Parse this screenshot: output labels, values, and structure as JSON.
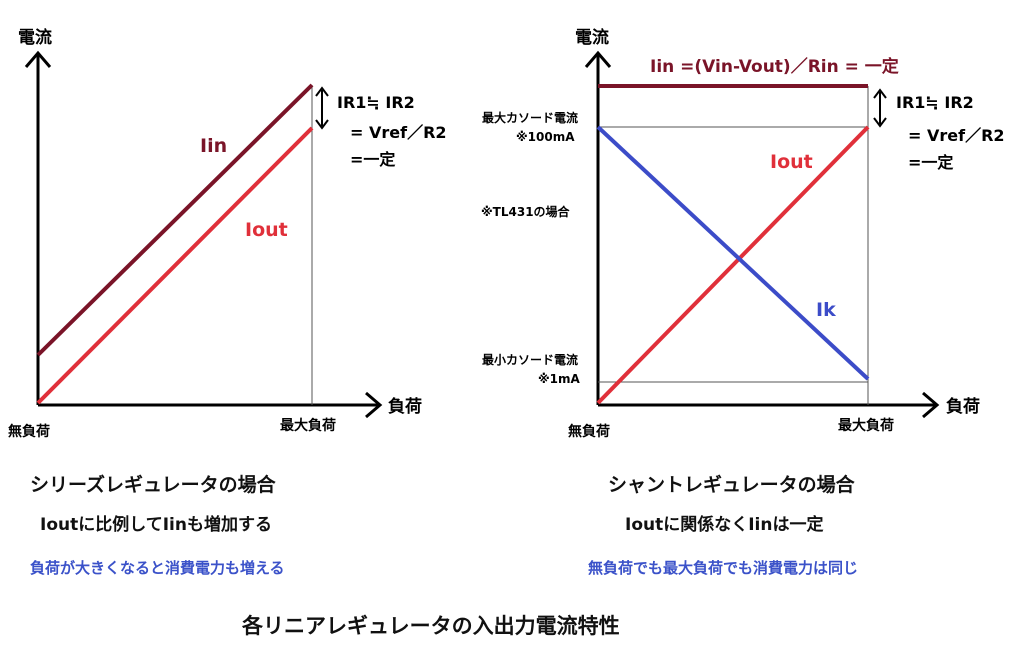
{
  "left": {
    "y_axis_label": "電流",
    "x_axis_label": "負荷",
    "x_min_label": "無負荷",
    "x_max_label": "最大負荷",
    "series_iin": "Iin",
    "series_iout": "Iout",
    "annotation": [
      "IR1≒ IR2",
      "= Vref／R2",
      "=一定"
    ],
    "caption_title": "シリーズレギュレータの場合",
    "caption_sub": "Ioutに比例してIinも増加する",
    "caption_note": "負荷が大きくなると消費電力も増える"
  },
  "right": {
    "y_axis_label": "電流",
    "x_axis_label": "負荷",
    "x_min_label": "無負荷",
    "x_max_label": "最大負荷",
    "iin_formula": "Iin =(Vin-Vout)／Rin = 一定",
    "series_iout": "Iout",
    "series_ik": "Ik",
    "max_cathode_label": "最大カソード電流",
    "max_cathode_value": "※100mA",
    "tl431_note": "※TL431の場合",
    "min_cathode_label": "最小カソード電流",
    "min_cathode_value": "※1mA",
    "annotation": [
      "IR1≒ IR2",
      "= Vref／R2",
      "=一定"
    ],
    "caption_title": "シャントレギュレータの場合",
    "caption_sub": "Ioutに関係なくIinは一定",
    "caption_note": "無負荷でも最大負荷でも消費電力は同じ"
  },
  "main_title": "各リニアレギュレータの入出力電流特性",
  "colors": {
    "iin": "#7a1428",
    "iout": "#e0303a",
    "ik": "#3c4cc8",
    "note": "#3b52c9"
  }
}
